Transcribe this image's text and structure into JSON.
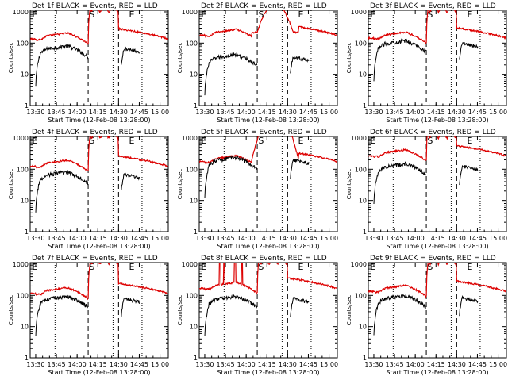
{
  "colors": {
    "events": "#000000",
    "lld": "#dd0000",
    "axis": "#000000",
    "background": "#ffffff"
  },
  "shared": {
    "xlabel": "Start Time (12-Feb-08 13:28:00)",
    "ylabel": "Counts/sec",
    "x_ticks": [
      "13:30",
      "13:45",
      "14:00",
      "14:15",
      "14:30",
      "14:45",
      "15:00"
    ],
    "y_ticks": [
      "1",
      "10",
      "100",
      "1000"
    ],
    "x_range_minutes": [
      -2,
      98
    ],
    "y_range_log": [
      1,
      1000
    ],
    "marker_labels": [
      "E",
      "S",
      "E"
    ]
  },
  "chart_data": [
    {
      "type": "line",
      "title": "Det 1f BLACK = Events, RED = LLD",
      "y_scale": "log",
      "events_base": 65,
      "lld_ratio": 2.6,
      "lld_peak": 0,
      "spikes": false
    },
    {
      "type": "line",
      "title": "Det 2f BLACK = Events, RED = LLD",
      "y_scale": "log",
      "events_base": 34,
      "lld_ratio": 6.5,
      "lld_peak": 1800,
      "spikes": false
    },
    {
      "type": "line",
      "title": "Det 3f BLACK = Events, RED = LLD",
      "y_scale": "log",
      "events_base": 95,
      "lld_ratio": 1.9,
      "lld_peak": 0,
      "spikes": false
    },
    {
      "type": "line",
      "title": "Det 4f BLACK = Events, RED = LLD",
      "y_scale": "log",
      "events_base": 65,
      "lld_ratio": 2.4,
      "lld_peak": 0,
      "spikes": false
    },
    {
      "type": "line",
      "title": "Det 5f BLACK = Events, RED = LLD",
      "y_scale": "log",
      "events_base": 190,
      "lld_ratio": 1.15,
      "lld_peak": 7000,
      "spikes": false
    },
    {
      "type": "line",
      "title": "Det 6f BLACK = Events, RED = LLD",
      "y_scale": "log",
      "events_base": 120,
      "lld_ratio": 2.8,
      "lld_peak": 0,
      "spikes": false
    },
    {
      "type": "line",
      "title": "Det 7f BLACK = Events, RED = LLD",
      "y_scale": "log",
      "events_base": 75,
      "lld_ratio": 1.9,
      "lld_peak": 0,
      "spikes": false
    },
    {
      "type": "line",
      "title": "Det 8f BLACK = Events, RED = LLD",
      "y_scale": "log",
      "events_base": 75,
      "lld_ratio": 2.8,
      "lld_peak": 0,
      "spikes": true
    },
    {
      "type": "line",
      "title": "Det 9f BLACK = Events, RED = LLD",
      "y_scale": "log",
      "events_base": 80,
      "lld_ratio": 2.1,
      "lld_peak": 0,
      "spikes": false
    }
  ]
}
